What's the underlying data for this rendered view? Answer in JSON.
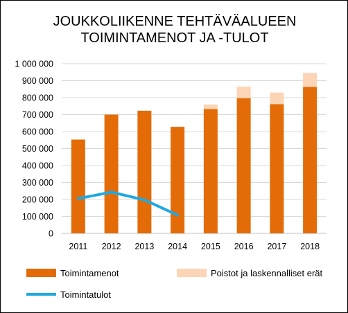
{
  "chart_data": {
    "type": "bar",
    "title_lines": [
      "JOUKKOLIIKENNE TEHTÄVÄALUEEN",
      "TOIMINTAMENOT  JA -TULOT"
    ],
    "categories": [
      "2011",
      "2012",
      "2013",
      "2014",
      "2015",
      "2016",
      "2017",
      "2018"
    ],
    "ylim": [
      0,
      1000000
    ],
    "y_ticks": [
      0,
      100000,
      200000,
      300000,
      400000,
      500000,
      600000,
      700000,
      800000,
      900000,
      1000000
    ],
    "y_tick_labels": [
      "0",
      "100 000",
      "200 000",
      "300 000",
      "400 000",
      "500 000",
      "600 000",
      "700 000",
      "800 000",
      "900 000",
      "1 000 000"
    ],
    "grid": true,
    "stacked": true,
    "legend_position": "bottom",
    "series": [
      {
        "name": "Toimintamenot",
        "kind": "bar",
        "color": "#e36c09",
        "values": [
          553000,
          700000,
          723000,
          628000,
          733000,
          797000,
          762000,
          863000
        ]
      },
      {
        "name": "Poistot ja laskennalliset erät",
        "kind": "bar",
        "color": "#fbd5b5",
        "values": [
          0,
          0,
          0,
          0,
          27000,
          68000,
          68000,
          83000
        ]
      },
      {
        "name": "Toimintatulot",
        "kind": "line",
        "color": "#1fa9e1",
        "values": [
          205000,
          243000,
          197000,
          108000,
          null,
          null,
          null,
          null
        ]
      }
    ]
  }
}
